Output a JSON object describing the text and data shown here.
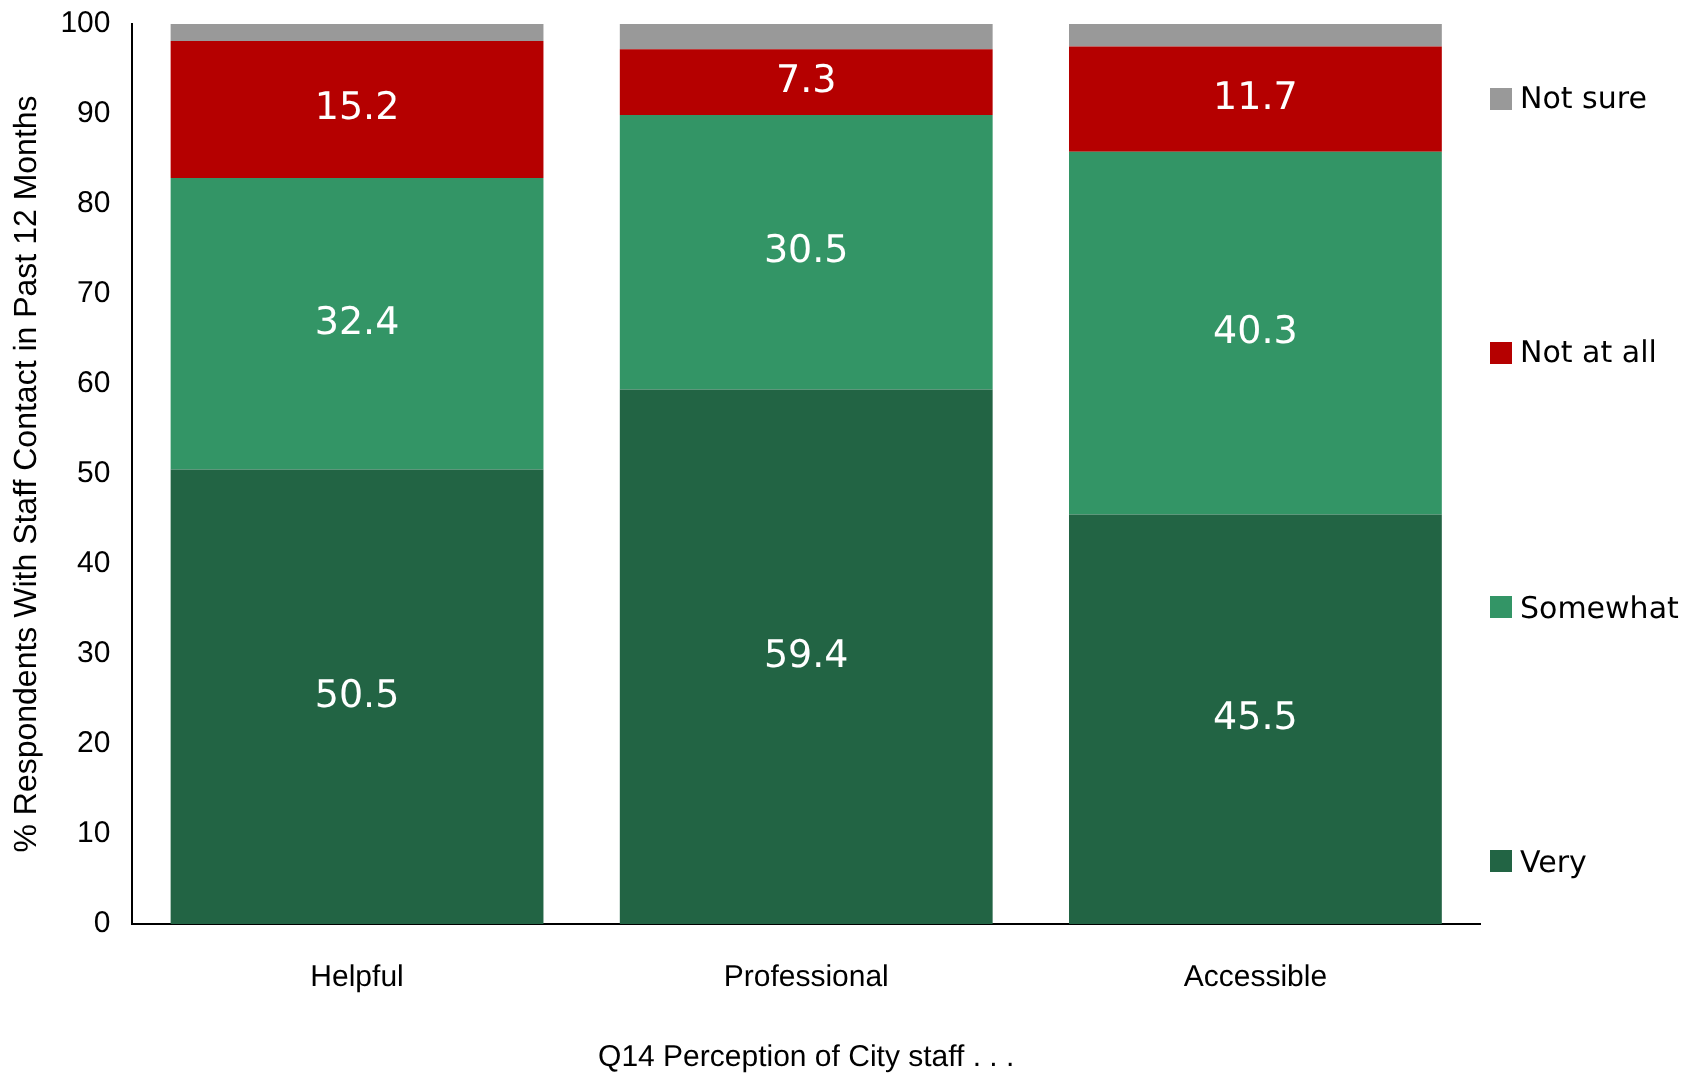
{
  "chart_data": {
    "type": "bar",
    "stacked": true,
    "xlabel": "Q14 Perception of City staff . . .",
    "ylabel": "% Respondents With Staff Contact in Past 12 Months",
    "categories": [
      "Helpful",
      "Professional",
      "Accessible"
    ],
    "series": [
      {
        "name": "Very",
        "color": "#226444",
        "values": [
          50.5,
          59.4,
          45.5
        ],
        "value_labels": [
          "50.5",
          "59.4",
          "45.5"
        ]
      },
      {
        "name": "Somewhat",
        "color": "#339566",
        "values": [
          32.4,
          30.5,
          40.3
        ],
        "value_labels": [
          "32.4",
          "30.5",
          "40.3"
        ]
      },
      {
        "name": "Not at all",
        "color": "#b50000",
        "values": [
          15.2,
          7.3,
          11.7
        ],
        "value_labels": [
          "15.2",
          "7.3",
          "11.7"
        ]
      },
      {
        "name": "Not sure",
        "color": "#999999",
        "values": [
          1.9,
          2.8,
          2.5
        ],
        "value_labels": [
          null,
          null,
          null
        ]
      }
    ],
    "ylim": [
      0,
      100
    ],
    "yticks": [
      0,
      10,
      20,
      30,
      40,
      50,
      60,
      70,
      80,
      90,
      100
    ],
    "grid": false,
    "legend": "right"
  }
}
